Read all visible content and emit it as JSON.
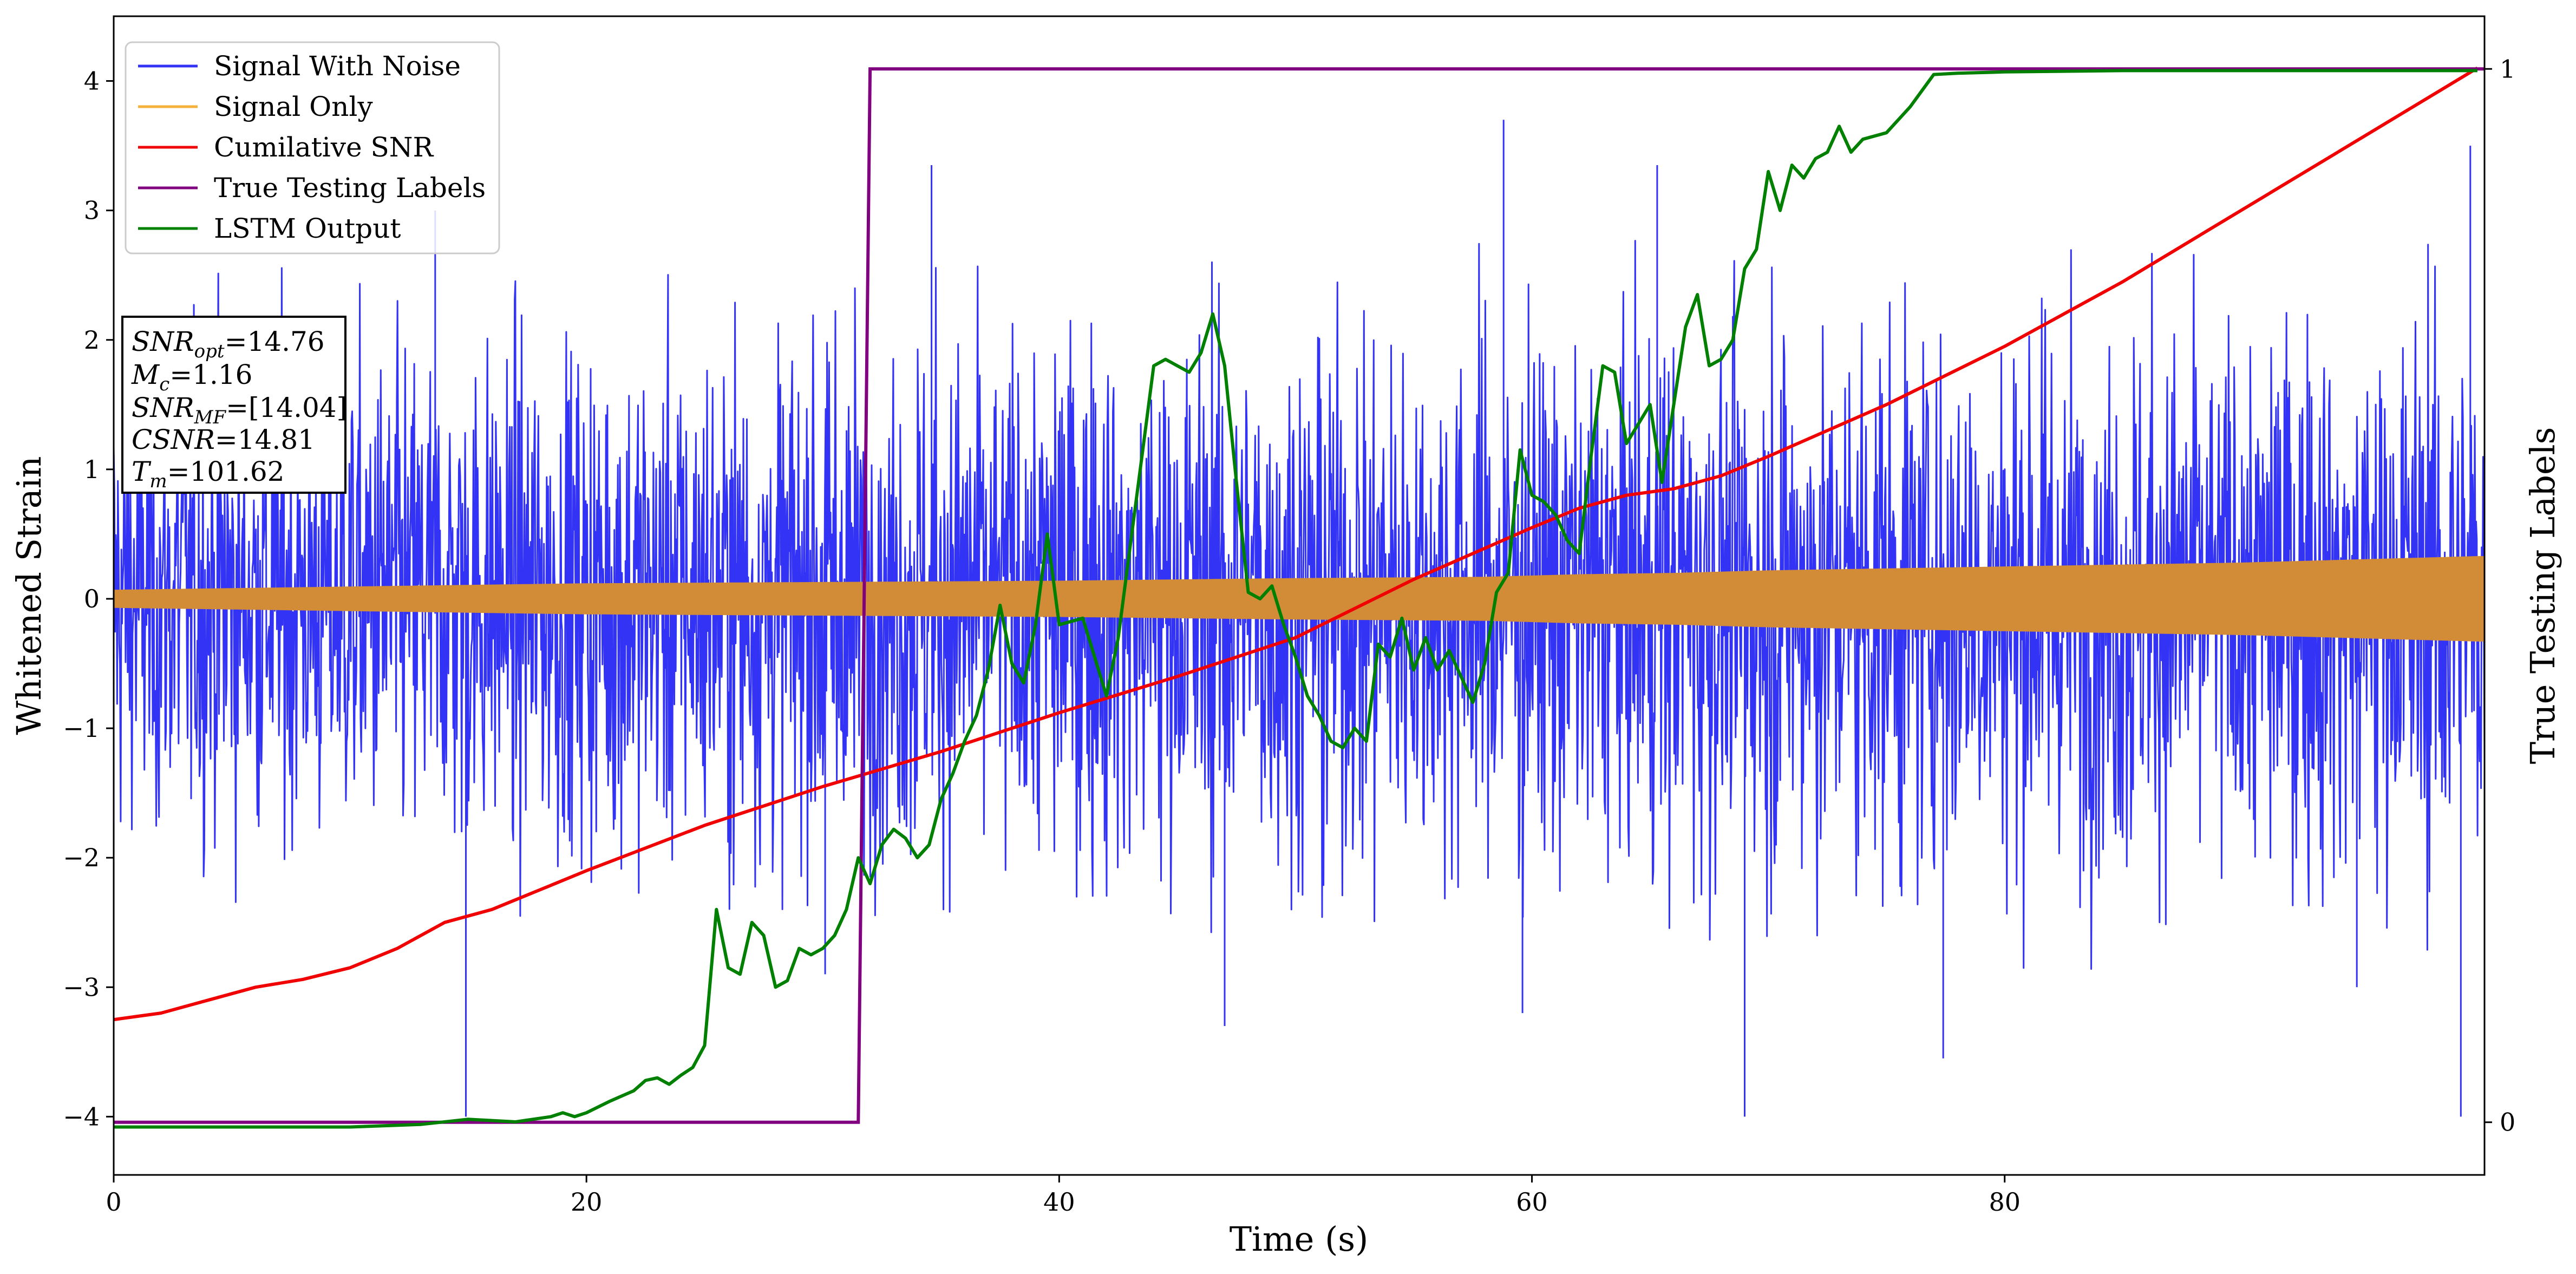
{
  "chart_data": {
    "type": "line",
    "xlabel": "Time (s)",
    "ylabel": "Whitened Strain",
    "y2label": "True Testing Labels",
    "xlim": [
      0,
      100.3
    ],
    "ylim": [
      -4.45,
      4.5
    ],
    "y2lim": [
      -0.05,
      1.05
    ],
    "x_ticks": [
      0,
      20,
      40,
      60,
      80
    ],
    "y_ticks": [
      -4,
      -3,
      -2,
      -1,
      0,
      1,
      2,
      3,
      4
    ],
    "y2_ticks": [
      0,
      1
    ],
    "grid": false,
    "legend_position": "top-left",
    "series": [
      {
        "name": "Signal With Noise",
        "color": "#3333f5",
        "axis": "left",
        "envelope_x": [
          0,
          10,
          20,
          30,
          40,
          50,
          60,
          70,
          80,
          90,
          100
        ],
        "envelope_upper_typical": [
          2.1,
          2.3,
          2.3,
          2.4,
          2.5,
          2.5,
          2.4,
          2.5,
          2.5,
          2.5,
          2.6
        ],
        "envelope_lower_typical": [
          -2.1,
          -2.2,
          -2.3,
          -2.3,
          -2.4,
          -2.4,
          -2.4,
          -2.4,
          -2.5,
          -2.5,
          -2.6
        ],
        "peaks": [
          {
            "x": 14.9,
            "y": -4.0
          },
          {
            "x": 13.6,
            "y": 3.0
          },
          {
            "x": 30.1,
            "y": -2.9
          },
          {
            "x": 34.6,
            "y": 3.35
          },
          {
            "x": 47.0,
            "y": -3.3
          },
          {
            "x": 58.8,
            "y": 3.7
          },
          {
            "x": 59.6,
            "y": -3.2
          },
          {
            "x": 65.3,
            "y": 3.35
          },
          {
            "x": 69.0,
            "y": -4.0
          },
          {
            "x": 77.4,
            "y": -3.55
          },
          {
            "x": 94.9,
            "y": -3.0
          },
          {
            "x": 99.3,
            "y": -4.0
          },
          {
            "x": 99.7,
            "y": 3.5
          }
        ]
      },
      {
        "name": "Signal Only",
        "color": "#f5b23b",
        "blend_color": "#d28c38",
        "axis": "left",
        "amplitude_x": [
          0,
          20,
          40,
          50,
          58,
          62,
          66,
          70,
          80,
          90,
          100
        ],
        "amplitude": [
          0.07,
          0.12,
          0.14,
          0.16,
          0.17,
          0.19,
          0.2,
          0.22,
          0.25,
          0.28,
          0.33
        ]
      },
      {
        "name": "Cumilative SNR",
        "color": "#f00000",
        "axis": "left",
        "x": [
          0,
          2,
          4,
          6,
          8,
          10,
          12,
          14,
          16,
          18,
          20,
          25,
          30,
          35,
          40,
          45,
          50,
          55,
          60,
          62,
          64,
          66,
          68,
          70,
          75,
          80,
          85,
          90,
          95,
          100
        ],
        "y": [
          -3.25,
          -3.2,
          -3.1,
          -3.0,
          -2.94,
          -2.85,
          -2.7,
          -2.5,
          -2.4,
          -2.25,
          -2.1,
          -1.75,
          -1.45,
          -1.18,
          -0.88,
          -0.6,
          -0.3,
          0.15,
          0.55,
          0.7,
          0.8,
          0.85,
          0.95,
          1.1,
          1.5,
          1.95,
          2.45,
          3.0,
          3.55,
          4.1
        ]
      },
      {
        "name": "True Testing Labels",
        "color": "#800080",
        "axis": "right",
        "x": [
          0,
          31.5,
          32.0,
          100.3
        ],
        "y": [
          0,
          0,
          1,
          1
        ]
      },
      {
        "name": "LSTM Output",
        "color": "#008000",
        "axis": "left",
        "x": [
          0,
          10,
          13,
          15,
          17,
          18.5,
          19,
          19.5,
          20,
          21,
          22,
          22.5,
          23,
          23.5,
          24,
          24.5,
          25,
          25.5,
          26,
          26.5,
          27,
          27.5,
          28,
          28.5,
          29,
          29.5,
          30,
          30.5,
          31,
          31.5,
          32,
          32.5,
          33,
          33.5,
          34,
          34.5,
          35,
          35.5,
          36,
          36.5,
          37,
          37.5,
          38,
          38.5,
          39,
          39.5,
          40,
          41,
          42,
          42.5,
          43,
          43.5,
          44,
          44.5,
          45,
          45.5,
          46,
          46.5,
          47,
          47.5,
          48,
          48.5,
          49,
          49.5,
          50,
          50.5,
          51,
          51.5,
          52,
          52.5,
          53,
          53.5,
          54,
          54.5,
          55,
          55.5,
          56,
          56.5,
          57,
          57.5,
          58,
          58.5,
          59,
          59.5,
          60,
          60.5,
          61,
          61.5,
          62,
          62.5,
          63,
          63.5,
          64,
          64.5,
          65,
          65.5,
          66,
          66.5,
          67,
          67.5,
          68,
          68.5,
          69,
          69.5,
          70,
          70.5,
          71,
          71.5,
          72,
          72.5,
          73,
          73.5,
          74,
          75,
          76,
          77,
          78,
          80,
          85,
          90,
          100
        ],
        "y": [
          -4.08,
          -4.08,
          -4.06,
          -4.02,
          -4.04,
          -4.0,
          -3.97,
          -4.0,
          -3.97,
          -3.88,
          -3.8,
          -3.72,
          -3.7,
          -3.75,
          -3.68,
          -3.62,
          -3.45,
          -2.4,
          -2.85,
          -2.9,
          -2.5,
          -2.6,
          -3.0,
          -2.95,
          -2.7,
          -2.75,
          -2.7,
          -2.6,
          -2.4,
          -2.0,
          -2.2,
          -1.9,
          -1.78,
          -1.85,
          -2.0,
          -1.9,
          -1.55,
          -1.35,
          -1.1,
          -0.9,
          -0.55,
          -0.05,
          -0.5,
          -0.65,
          -0.2,
          0.5,
          -0.2,
          -0.15,
          -0.75,
          -0.3,
          0.4,
          1.1,
          1.8,
          1.85,
          1.8,
          1.75,
          1.9,
          2.2,
          1.8,
          0.9,
          0.05,
          0.0,
          0.1,
          -0.2,
          -0.45,
          -0.75,
          -0.9,
          -1.1,
          -1.15,
          -1.0,
          -1.1,
          -0.35,
          -0.45,
          -0.15,
          -0.55,
          -0.3,
          -0.55,
          -0.4,
          -0.6,
          -0.8,
          -0.5,
          0.05,
          0.2,
          1.15,
          0.8,
          0.75,
          0.65,
          0.45,
          0.35,
          1.1,
          1.8,
          1.75,
          1.2,
          1.35,
          1.5,
          0.9,
          1.5,
          2.1,
          2.35,
          1.8,
          1.85,
          2.0,
          2.55,
          2.7,
          3.3,
          3.0,
          3.35,
          3.25,
          3.4,
          3.45,
          3.65,
          3.45,
          3.55,
          3.6,
          3.8,
          4.05,
          4.06,
          4.07,
          4.08,
          4.08,
          4.08
        ]
      }
    ]
  },
  "legend": {
    "items": [
      {
        "label": "Signal With Noise",
        "color": "#3333f5"
      },
      {
        "label": "Signal Only",
        "color": "#f5b23b"
      },
      {
        "label": "Cumilative SNR",
        "color": "#f00000"
      },
      {
        "label": "True Testing Labels",
        "color": "#800080"
      },
      {
        "label": "LSTM Output",
        "color": "#008000"
      }
    ]
  },
  "info_box": {
    "snr_opt_base": "SNR",
    "snr_opt_sub": "opt",
    "snr_opt_value": "=14.76",
    "mc_base": "M",
    "mc_sub": "c",
    "mc_value": "=1.16",
    "snr_mf_base": "SNR",
    "snr_mf_sub": "MF",
    "snr_mf_value": "=[14.04]",
    "csnr_base": "CSNR",
    "csnr_value": "=14.81",
    "tm_base": "T",
    "tm_sub": "m",
    "tm_value": "=101.62"
  }
}
